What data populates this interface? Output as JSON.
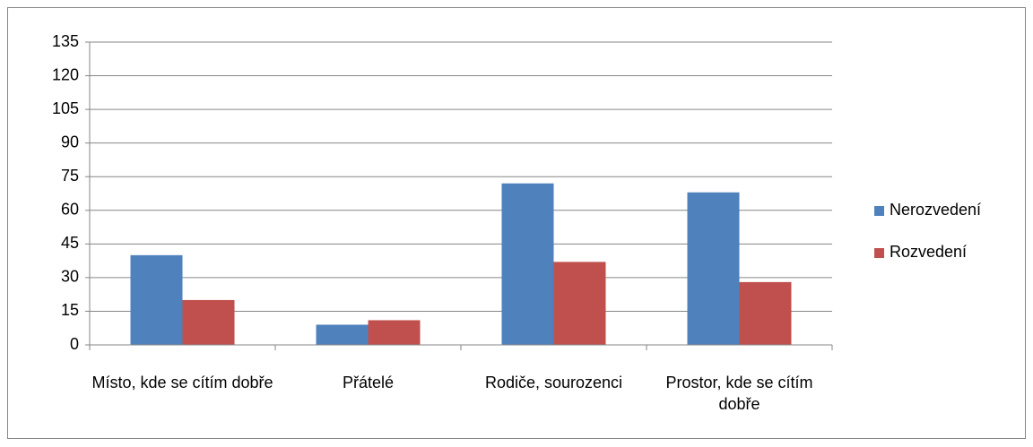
{
  "chart_data": {
    "type": "bar",
    "categories": [
      "Místo, kde se cítím dobře",
      "Přátelé",
      "Rodiče, sourozenci",
      "Prostor, kde se cítím dobře"
    ],
    "series": [
      {
        "name": "Nerozvedení",
        "color": "#4f81bd",
        "values": [
          40,
          9,
          72,
          68
        ]
      },
      {
        "name": "Rozvedení",
        "color": "#c0504d",
        "values": [
          20,
          11,
          37,
          28
        ]
      }
    ],
    "ylim": [
      0,
      135
    ],
    "yticks": [
      0,
      15,
      30,
      45,
      60,
      75,
      90,
      105,
      120,
      135
    ],
    "grid": true,
    "legend": "right"
  }
}
